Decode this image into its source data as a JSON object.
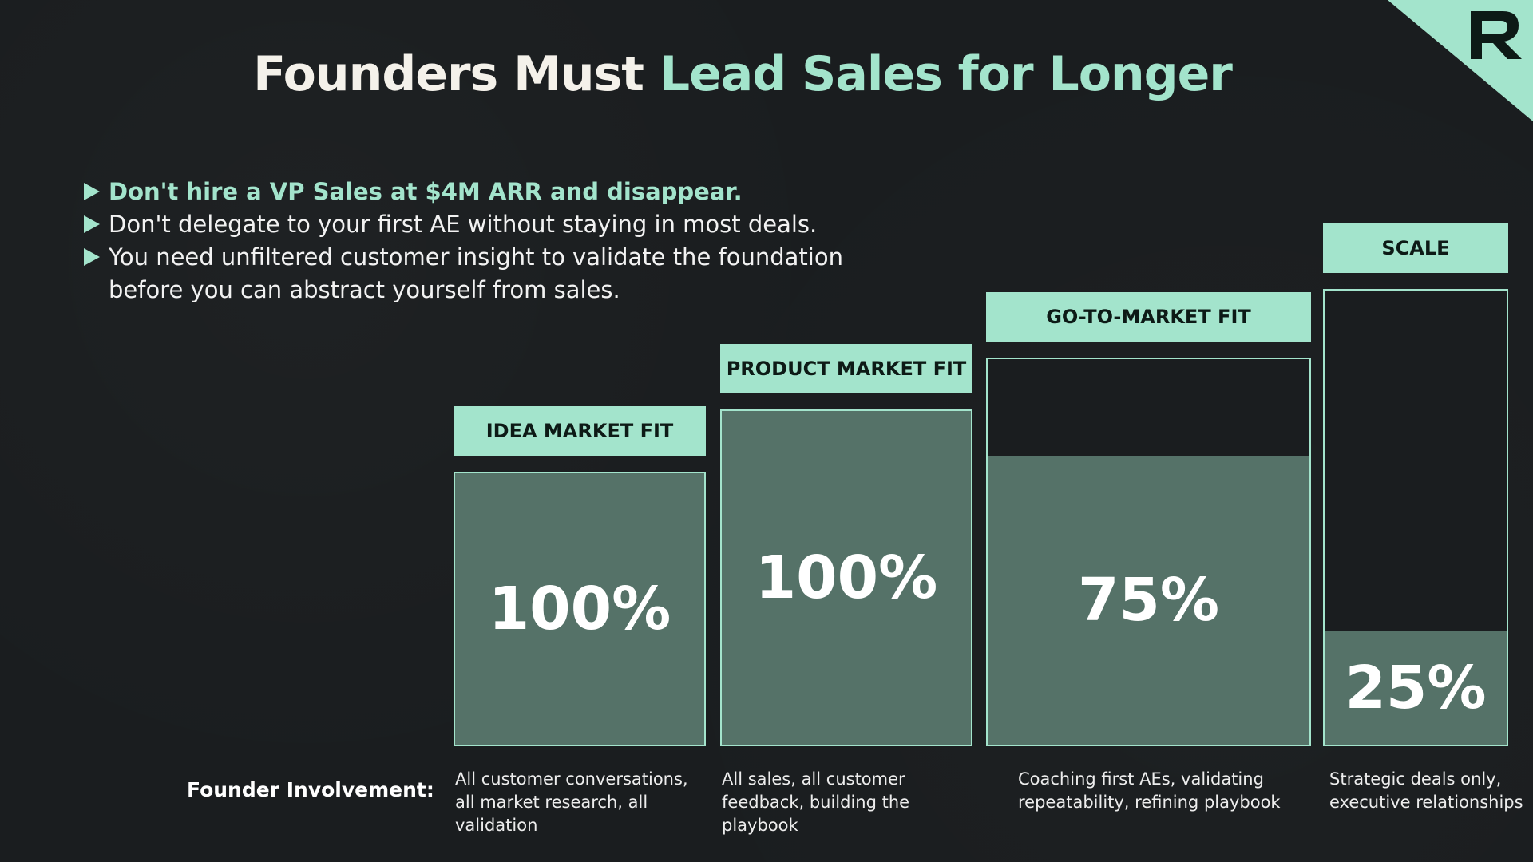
{
  "title": {
    "prefix": "Founders Must",
    "accent": "Lead Sales for Longer"
  },
  "bullets": [
    "Don't hire a VP Sales at $4M ARR and disappear.",
    "Don't delegate to your first AE without staying in most deals.",
    "You need unfiltered customer insight to validate the foundation before you can abstract yourself from sales."
  ],
  "row_label": "Founder Involvement:",
  "colors": {
    "background": "#1a1d1f",
    "accent": "#a3e4cc",
    "fill": "#557268"
  },
  "logo_icon": "brand-r-logo-icon",
  "chart_data": {
    "type": "bar",
    "categories": [
      "IDEA MARKET FIT",
      "PRODUCT MARKET FIT",
      "GO-TO-MARKET FIT",
      "SCALE"
    ],
    "series": [
      {
        "values": [
          100,
          100,
          75,
          25
        ]
      }
    ],
    "data_labels": [
      "100%",
      "100%",
      "75%",
      "25%"
    ],
    "descriptions": [
      "All customer conversations, all market research, all validation",
      "All sales, all customer feedback, building the playbook",
      "Coaching first AEs, validating repeatability, refining playbook",
      "Strategic deals only, executive relationships"
    ],
    "unit": "%",
    "ylim": [
      0,
      100
    ],
    "grid": false
  }
}
